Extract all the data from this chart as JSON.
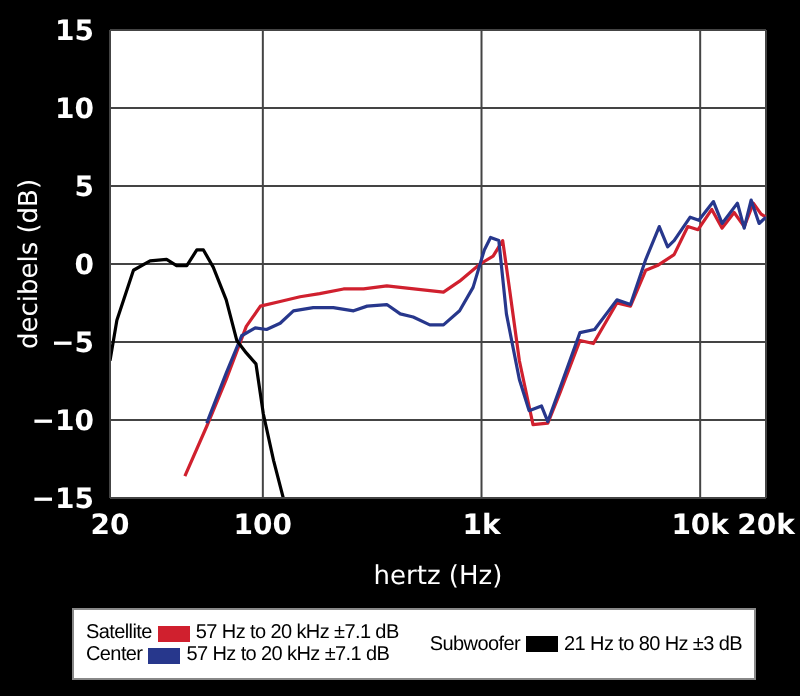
{
  "chart_data": {
    "type": "line",
    "xlabel": "hertz (Hz)",
    "ylabel": "decibels (dB)",
    "log": "x",
    "xlim": [
      20,
      20000
    ],
    "xticks": [
      20,
      100,
      {
        "value": 1000,
        "label": "1k"
      },
      {
        "value": 10000,
        "label": "10k"
      },
      {
        "value": 20000,
        "label": "20k"
      }
    ],
    "ylim": [
      -15,
      15
    ],
    "yticks": [
      {
        "value": -15,
        "label": "−15"
      },
      {
        "value": -10,
        "label": "−10"
      },
      {
        "value": -5,
        "label": "−5"
      },
      0,
      5,
      10,
      15
    ],
    "grid": true,
    "legend": "bottom",
    "line_style": "solid",
    "marker": "none",
    "annotations": [
      "57 Hz to 20 kHz ±7.1 dB",
      "57 Hz to 20 kHz ±7.1 dB",
      "21 Hz to 80 Hz ±3 dB"
    ],
    "series": [
      {
        "name": "Satellite",
        "color": "#d0202e",
        "x": [
          44,
          55.4,
          68,
          84,
          97.5,
          120,
          148,
          182,
          234,
          289,
          369,
          425,
          670,
          794,
          985,
          1130,
          1250,
          1340,
          1490,
          1720,
          2010,
          2280,
          2820,
          3250,
          4160,
          4800,
          5640,
          6370,
          7600,
          8780,
          9780,
          11300,
          12600,
          14300,
          15900,
          17500,
          19000,
          20000
        ],
        "values": [
          -13.6,
          -10.4,
          -7.4,
          -4.0,
          -2.7,
          -2.4,
          -2.1,
          -1.9,
          -1.6,
          -1.6,
          -1.4,
          -1.5,
          -1.8,
          -1.1,
          0,
          0.5,
          1.5,
          -1.5,
          -6.2,
          -10.3,
          -10.2,
          -8.3,
          -4.9,
          -5.1,
          -2.5,
          -2.7,
          -0.4,
          -0.1,
          0.6,
          2.4,
          2.2,
          3.5,
          2.3,
          3.3,
          2.4,
          3.9,
          3.2,
          3.0
        ]
      },
      {
        "name": "Center",
        "color": "#27378c",
        "x": [
          55.4,
          68,
          80,
          92.3,
          104,
          120,
          138,
          170,
          210,
          260,
          300,
          369,
          425,
          487,
          580,
          670,
          794,
          915,
          1030,
          1100,
          1200,
          1300,
          1490,
          1650,
          1880,
          2010,
          2360,
          2820,
          3290,
          4160,
          4800,
          5640,
          6500,
          7100,
          7600,
          9000,
          9860,
          11500,
          12600,
          14800,
          15900,
          17100,
          18600,
          20000
        ],
        "values": [
          -10.2,
          -7.0,
          -4.6,
          -4.1,
          -4.2,
          -3.8,
          -3.0,
          -2.8,
          -2.8,
          -3.0,
          -2.7,
          -2.6,
          -3.2,
          -3.4,
          -3.9,
          -3.9,
          -3.0,
          -1.5,
          0.9,
          1.7,
          1.5,
          -3.2,
          -7.4,
          -9.4,
          -9.1,
          -10.1,
          -7.4,
          -4.4,
          -4.2,
          -2.3,
          -2.6,
          0.3,
          2.4,
          1.1,
          1.5,
          3.0,
          2.8,
          4.0,
          2.6,
          3.9,
          2.3,
          4.1,
          2.6,
          3.0
        ]
      },
      {
        "name": "Subwoofer",
        "color": "#000000",
        "x": [
          20,
          21.5,
          25.6,
          30.5,
          36.3,
          40.3,
          44.9,
          49.9,
          53.5,
          59.3,
          68,
          76,
          84,
          93,
          100.5,
          112,
          124
        ],
        "values": [
          -6.2,
          -3.6,
          -0.4,
          0.2,
          0.3,
          -0.1,
          -0.1,
          0.9,
          0.9,
          -0.2,
          -2.3,
          -4.9,
          -5.7,
          -6.4,
          -9.6,
          -12.6,
          -15
        ]
      }
    ]
  }
}
